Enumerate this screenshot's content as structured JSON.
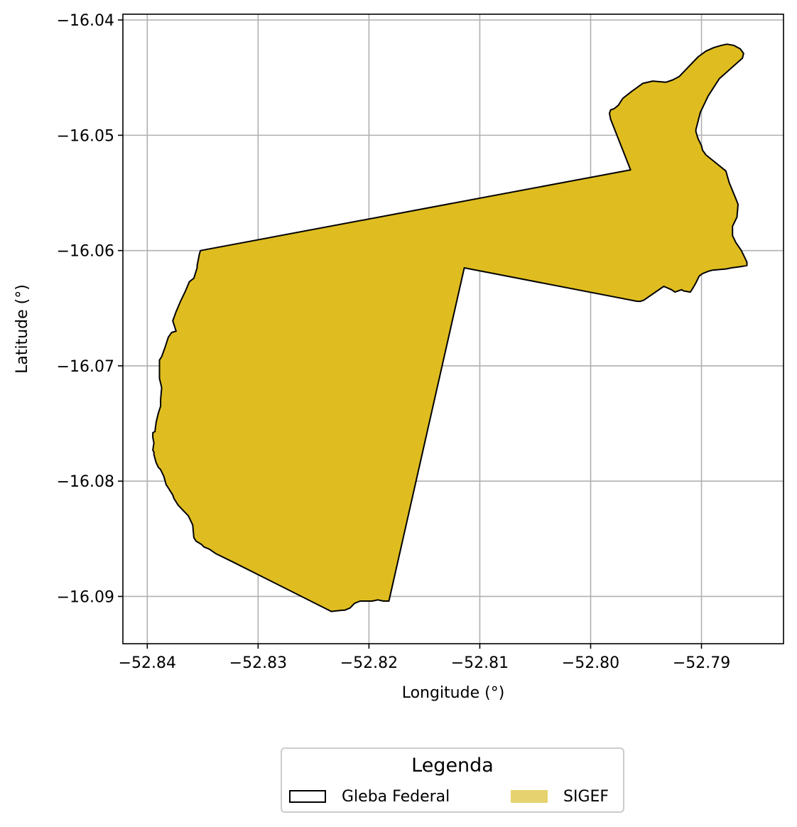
{
  "map": {
    "xlabel": "Longitude (°)",
    "ylabel": "Latitude (°)",
    "xlim": [
      -52.8422,
      -52.7826
    ],
    "ylim": [
      -16.0941,
      -16.0395
    ],
    "x_ticks": [
      -52.84,
      -52.83,
      -52.82,
      -52.81,
      -52.8,
      -52.79
    ],
    "x_tick_labels": [
      "−52.84",
      "−52.83",
      "−52.82",
      "−52.81",
      "−52.80",
      "−52.79"
    ],
    "y_ticks": [
      -16.04,
      -16.05,
      -16.06,
      -16.07,
      -16.08,
      -16.09
    ],
    "y_tick_labels": [
      "−16.04",
      "−16.05",
      "−16.06",
      "−16.07",
      "−16.08",
      "−16.09"
    ],
    "grid": true,
    "colors": {
      "fill": "#dfbd20",
      "outline": "#000000",
      "grid": "#b0b0b0",
      "legend_fill": "#e6d26e"
    },
    "polygon": [
      [
        -52.8352,
        -16.06
      ],
      [
        -52.7964,
        -16.053
      ],
      [
        -52.7982,
        -16.0486
      ],
      [
        -52.7983,
        -16.0481
      ],
      [
        -52.7982,
        -16.0478
      ],
      [
        -52.7979,
        -16.0477
      ],
      [
        -52.7975,
        -16.0474
      ],
      [
        -52.7971,
        -16.0468
      ],
      [
        -52.7963,
        -16.0462
      ],
      [
        -52.7953,
        -16.0455
      ],
      [
        -52.7944,
        -16.0453
      ],
      [
        -52.7932,
        -16.0454
      ],
      [
        -52.7926,
        -16.0452
      ],
      [
        -52.792,
        -16.0449
      ],
      [
        -52.7912,
        -16.0441
      ],
      [
        -52.7903,
        -16.0432
      ],
      [
        -52.7896,
        -16.0427
      ],
      [
        -52.7889,
        -16.0424
      ],
      [
        -52.7882,
        -16.0422
      ],
      [
        -52.7877,
        -16.0421
      ],
      [
        -52.7871,
        -16.0422
      ],
      [
        -52.7865,
        -16.0425
      ],
      [
        -52.7862,
        -16.0429
      ],
      [
        -52.7863,
        -16.0433
      ],
      [
        -52.7884,
        -16.0451
      ],
      [
        -52.7894,
        -16.0466
      ],
      [
        -52.7901,
        -16.048
      ],
      [
        -52.7905,
        -16.0495
      ],
      [
        -52.7905,
        -16.0497
      ],
      [
        -52.7903,
        -16.0503
      ],
      [
        -52.79,
        -16.0509
      ],
      [
        -52.7899,
        -16.0513
      ],
      [
        -52.7896,
        -16.0517
      ],
      [
        -52.7878,
        -16.0531
      ],
      [
        -52.7875,
        -16.0541
      ],
      [
        -52.7869,
        -16.0555
      ],
      [
        -52.7867,
        -16.056
      ],
      [
        -52.7868,
        -16.0571
      ],
      [
        -52.7872,
        -16.0579
      ],
      [
        -52.7872,
        -16.0587
      ],
      [
        -52.7869,
        -16.0593
      ],
      [
        -52.7864,
        -16.06
      ],
      [
        -52.7861,
        -16.0606
      ],
      [
        -52.7859,
        -16.061
      ],
      [
        -52.7859,
        -16.0613
      ],
      [
        -52.7865,
        -16.0614
      ],
      [
        -52.7873,
        -16.0615
      ],
      [
        -52.7878,
        -16.0616
      ],
      [
        -52.789,
        -16.0617
      ],
      [
        -52.7894,
        -16.0618
      ],
      [
        -52.7899,
        -16.062
      ],
      [
        -52.7902,
        -16.0622
      ],
      [
        -52.7905,
        -16.0628
      ],
      [
        -52.7908,
        -16.0633
      ],
      [
        -52.791,
        -16.0636
      ],
      [
        -52.7916,
        -16.0635
      ],
      [
        -52.7918,
        -16.0634
      ],
      [
        -52.7924,
        -16.0636
      ],
      [
        -52.7927,
        -16.0634
      ],
      [
        -52.7934,
        -16.0631
      ],
      [
        -52.7946,
        -16.0639
      ],
      [
        -52.7952,
        -16.0643
      ],
      [
        -52.7955,
        -16.0644
      ],
      [
        -52.7958,
        -16.0644
      ],
      [
        -52.8114,
        -16.0615
      ],
      [
        -52.8182,
        -16.0904
      ],
      [
        -52.8187,
        -16.0904
      ],
      [
        -52.8192,
        -16.0903
      ],
      [
        -52.8197,
        -16.0904
      ],
      [
        -52.8208,
        -16.0904
      ],
      [
        -52.8213,
        -16.0906
      ],
      [
        -52.8217,
        -16.091
      ],
      [
        -52.8222,
        -16.0912
      ],
      [
        -52.8224,
        -16.0912
      ],
      [
        -52.8234,
        -16.0913
      ],
      [
        -52.8323,
        -16.087
      ],
      [
        -52.8338,
        -16.0863
      ],
      [
        -52.8344,
        -16.0859
      ],
      [
        -52.8349,
        -16.0857
      ],
      [
        -52.8351,
        -16.0855
      ],
      [
        -52.8356,
        -16.0852
      ],
      [
        -52.8358,
        -16.0849
      ],
      [
        -52.8359,
        -16.0838
      ],
      [
        -52.8361,
        -16.0834
      ],
      [
        -52.8363,
        -16.083
      ],
      [
        -52.8367,
        -16.0826
      ],
      [
        -52.8372,
        -16.0821
      ],
      [
        -52.8376,
        -16.0815
      ],
      [
        -52.8377,
        -16.0812
      ],
      [
        -52.8381,
        -16.0806
      ],
      [
        -52.8383,
        -16.0803
      ],
      [
        -52.8385,
        -16.0796
      ],
      [
        -52.8388,
        -16.079
      ],
      [
        -52.839,
        -16.0788
      ],
      [
        -52.8392,
        -16.0784
      ],
      [
        -52.8394,
        -16.0777
      ],
      [
        -52.8394,
        -16.0775
      ],
      [
        -52.8395,
        -16.0773
      ],
      [
        -52.8394,
        -16.0767
      ],
      [
        -52.8395,
        -16.0762
      ],
      [
        -52.8395,
        -16.0758
      ],
      [
        -52.8393,
        -16.0757
      ],
      [
        -52.8393,
        -16.0756
      ],
      [
        -52.8392,
        -16.0749
      ],
      [
        -52.839,
        -16.0741
      ],
      [
        -52.8388,
        -16.0735
      ],
      [
        -52.8388,
        -16.0729
      ],
      [
        -52.8387,
        -16.0719
      ],
      [
        -52.8388,
        -16.0715
      ],
      [
        -52.8389,
        -16.0711
      ],
      [
        -52.8389,
        -16.0695
      ],
      [
        -52.8387,
        -16.0692
      ],
      [
        -52.8384,
        -16.0684
      ],
      [
        -52.8381,
        -16.0675
      ],
      [
        -52.8378,
        -16.0671
      ],
      [
        -52.8374,
        -16.067
      ],
      [
        -52.8377,
        -16.0661
      ],
      [
        -52.8374,
        -16.0653
      ],
      [
        -52.837,
        -16.0644
      ],
      [
        -52.8366,
        -16.0636
      ],
      [
        -52.8362,
        -16.0627
      ],
      [
        -52.8358,
        -16.0624
      ],
      [
        -52.8355,
        -16.0615
      ],
      [
        -52.8355,
        -16.0613
      ],
      [
        -52.8353,
        -16.0603
      ]
    ]
  },
  "legend": {
    "title": "Legenda",
    "items": [
      {
        "label": "Gleba Federal"
      },
      {
        "label": "SIGEF"
      }
    ]
  }
}
